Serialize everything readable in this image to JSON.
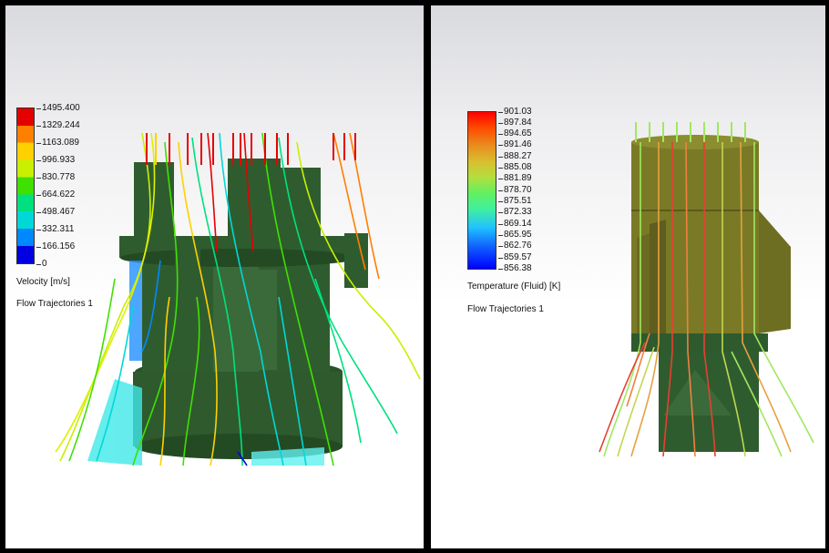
{
  "left_panel": {
    "legend": {
      "title": "Velocity [m/s]",
      "subtitle": "Flow Trajectories 1",
      "ticks": [
        "1495.400",
        "1329.244",
        "1163.089",
        "996.933",
        "830.778",
        "664.622",
        "498.467",
        "332.311",
        "166.156",
        "0"
      ],
      "colors": [
        "#e50000",
        "#ff7f00",
        "#ffd000",
        "#c8f000",
        "#40e000",
        "#00e080",
        "#00d8d8",
        "#0088ff",
        "#0000e0"
      ]
    }
  },
  "right_panel": {
    "legend": {
      "title": "Temperature (Fluid) [K]",
      "subtitle": "Flow Trajectories 1",
      "ticks": [
        "901.03",
        "897.84",
        "894.65",
        "891.46",
        "888.27",
        "885.08",
        "881.89",
        "878.70",
        "875.51",
        "872.33",
        "869.14",
        "865.95",
        "862.76",
        "859.57",
        "856.38"
      ]
    }
  },
  "colors": {
    "model_green": "#2e5a2e",
    "model_olive": "#7a7a26",
    "separator": "#000000"
  }
}
